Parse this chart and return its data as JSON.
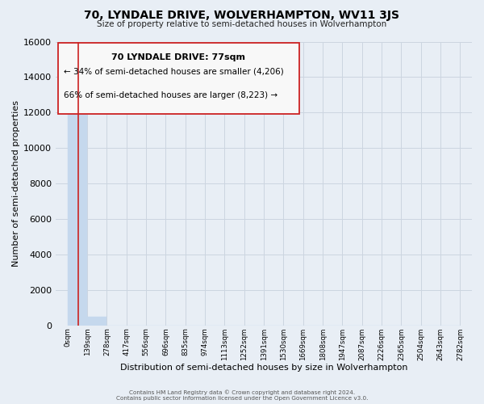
{
  "title": "70, LYNDALE DRIVE, WOLVERHAMPTON, WV11 3JS",
  "subtitle": "Size of property relative to semi-detached houses in Wolverhampton",
  "xlabel": "Distribution of semi-detached houses by size in Wolverhampton",
  "ylabel": "Number of semi-detached properties",
  "bar_edges": [
    0,
    139,
    278,
    417,
    556,
    696,
    835,
    974,
    1113,
    1252,
    1391,
    1530,
    1669,
    1808,
    1947,
    2087,
    2226,
    2365,
    2504,
    2643,
    2782
  ],
  "bar_heights": [
    12050,
    490,
    0,
    0,
    0,
    0,
    0,
    0,
    0,
    0,
    0,
    0,
    0,
    0,
    0,
    0,
    0,
    0,
    0,
    0
  ],
  "bar_color": "#c5d8ed",
  "property_size": 77,
  "property_label": "70 LYNDALE DRIVE: 77sqm",
  "pct_smaller": 34,
  "count_smaller": 4206,
  "pct_larger": 66,
  "count_larger": 8223,
  "ylim": [
    0,
    16000
  ],
  "yticks": [
    0,
    2000,
    4000,
    6000,
    8000,
    10000,
    12000,
    14000,
    16000
  ],
  "xtick_labels": [
    "0sqm",
    "139sqm",
    "278sqm",
    "417sqm",
    "556sqm",
    "696sqm",
    "835sqm",
    "974sqm",
    "1113sqm",
    "1252sqm",
    "1391sqm",
    "1530sqm",
    "1669sqm",
    "1808sqm",
    "1947sqm",
    "2087sqm",
    "2226sqm",
    "2365sqm",
    "2504sqm",
    "2643sqm",
    "2782sqm"
  ],
  "annotation_box_facecolor": "#f8f8f8",
  "annotation_border_color": "#cc2222",
  "grid_color": "#ccd5e0",
  "background_color": "#e8eef5",
  "footer_line1": "Contains HM Land Registry data © Crown copyright and database right 2024.",
  "footer_line2": "Contains public sector information licensed under the Open Government Licence v3.0."
}
